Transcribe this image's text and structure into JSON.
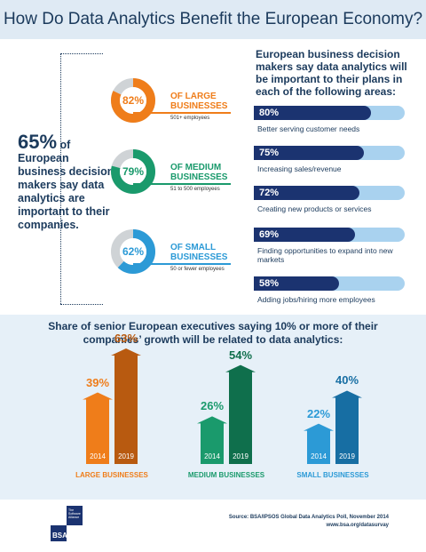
{
  "title": "How Do Data Analytics Benefit the European Economy?",
  "stat65": {
    "pct": "65%",
    "of": " of",
    "text": "European business decision makers say data analytics are important to their companies."
  },
  "donuts": [
    {
      "value": 82,
      "pct": "82%",
      "label1": "OF LARGE",
      "label2": "BUSINESSES",
      "sub": "501+ employees",
      "color": "#ef7d1a"
    },
    {
      "value": 79,
      "pct": "79%",
      "label1": "OF MEDIUM",
      "label2": "BUSINESSES",
      "sub": "51 to 500 employees",
      "color": "#1a9a6c"
    },
    {
      "value": 62,
      "pct": "62%",
      "label1": "OF SMALL",
      "label2": "BUSINESSES",
      "sub": "50 or fewer employees",
      "color": "#2c9ad6"
    }
  ],
  "right_title": "European business decision makers say data analytics will be important to their plans in each of the following areas:",
  "areas": [
    {
      "pct": "80%",
      "value": 80,
      "label": "Better serving customer needs"
    },
    {
      "pct": "75%",
      "value": 75,
      "label": "Increasing sales/revenue"
    },
    {
      "pct": "72%",
      "value": 72,
      "label": "Creating new products or services"
    },
    {
      "pct": "69%",
      "value": 69,
      "label": "Finding opportunities to expand into new markets"
    },
    {
      "pct": "58%",
      "value": 58,
      "label": "Adding jobs/hiring more employees"
    }
  ],
  "bottom_title": "Share of senior European executives saying 10% or more of their companies’ growth will be related to data analytics:",
  "chart_data": {
    "type": "bar",
    "categories": [
      "LARGE BUSINESSES",
      "MEDIUM BUSINESSES",
      "SMALL BUSINESSES"
    ],
    "series": [
      {
        "name": "2014",
        "values": [
          39,
          26,
          22
        ],
        "labels": [
          "39%",
          "26%",
          "22%"
        ]
      },
      {
        "name": "2019",
        "values": [
          63,
          54,
          40
        ],
        "labels": [
          "63%",
          "54%",
          "40%"
        ]
      }
    ],
    "colors": {
      "LARGE BUSINESSES": [
        "#ef7d1a",
        "#b85a10"
      ],
      "MEDIUM BUSINESSES": [
        "#1a9a6c",
        "#0f6f4c"
      ],
      "SMALL BUSINESSES": [
        "#2c9ad6",
        "#176ea3"
      ]
    }
  },
  "source": {
    "line1": "Source: BSA/IPSOS Global Data Analytics Poll, November 2014",
    "line2": "www.bsa.org/datasurvay"
  },
  "logo": {
    "name": "BSA",
    "tag1": "The",
    "tag2": "Software",
    "tag3": "Alliance"
  }
}
